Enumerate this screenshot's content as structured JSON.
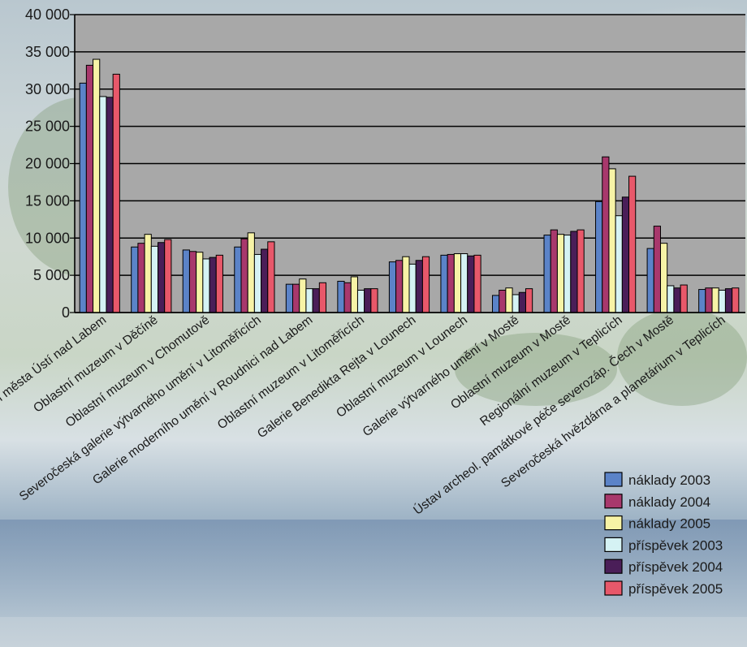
{
  "chart_data": {
    "type": "bar",
    "title": "",
    "xlabel": "",
    "ylabel": "",
    "ylim": [
      0,
      40000
    ],
    "yticks": [
      "0",
      "5 000",
      "10 000",
      "15 000",
      "20 000",
      "25 000",
      "30 000",
      "35 000",
      "40 000"
    ],
    "grid": true,
    "legend_position": "bottom-right",
    "categories": [
      "Muzeum města Ústí nad Labem",
      "Oblastní muzeum v Děčíně",
      "Oblastní muzeum v Chomutově",
      "Severočeská galerie výtvarného umění v Litoměřicích",
      "Galerie moderního umění v Roudnici nad Labem",
      "Oblastní muzeum v Litoměřicích",
      "Galerie Benedikta Rejta v Lounech",
      "Oblastní muzeum v Lounech",
      "Galerie výtvarného umění v Mostě",
      "Oblastní muzeum v Mostě",
      "Regionální muzeum v Teplicích",
      "Ústav archeol. památkové péče severozáp. Čech v Mostě",
      "Severočeská hvězdárna a planetárium v Teplicích"
    ],
    "series": [
      {
        "name": "náklady 2003",
        "color": "#5b83c8",
        "values": [
          30800,
          8800,
          8400,
          8800,
          3800,
          4200,
          6800,
          7700,
          2300,
          10400,
          14900,
          8600,
          3100
        ]
      },
      {
        "name": "náklady 2004",
        "color": "#a8386c",
        "values": [
          33200,
          9300,
          8200,
          9900,
          3800,
          4000,
          7000,
          7800,
          3000,
          11100,
          20900,
          11600,
          3300
        ]
      },
      {
        "name": "náklady 2005",
        "color": "#f7f3a6",
        "values": [
          34000,
          10500,
          8100,
          10700,
          4500,
          4800,
          7500,
          7900,
          3300,
          10500,
          19300,
          9300,
          3300
        ]
      },
      {
        "name": "příspěvek 2003",
        "color": "#d5f2f4",
        "values": [
          29000,
          8900,
          7200,
          7800,
          3200,
          3000,
          6500,
          7900,
          2400,
          10400,
          13000,
          3600,
          3000
        ]
      },
      {
        "name": "příspěvek 2004",
        "color": "#4a1e58",
        "values": [
          28900,
          9400,
          7400,
          8500,
          3200,
          3200,
          7000,
          7600,
          2700,
          10900,
          15500,
          3300,
          3200
        ]
      },
      {
        "name": "příspěvek 2005",
        "color": "#e8586a",
        "values": [
          32000,
          9800,
          7700,
          9500,
          4000,
          3200,
          7500,
          7700,
          3200,
          11100,
          18300,
          3700,
          3300
        ]
      }
    ]
  }
}
